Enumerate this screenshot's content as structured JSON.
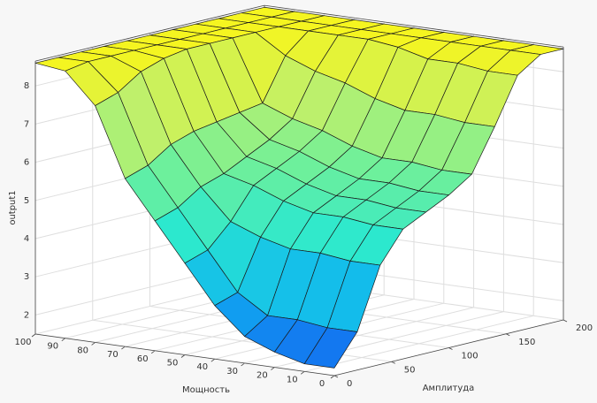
{
  "chart_data": {
    "type": "surface",
    "x_label": "Мощность",
    "y_label": "Амплитуда",
    "z_label": "output1",
    "x": [
      0,
      10,
      20,
      30,
      40,
      50,
      60,
      70,
      80,
      90,
      100
    ],
    "y": [
      0,
      20,
      40,
      60,
      80,
      100,
      120,
      140,
      160,
      180,
      200
    ],
    "z": [
      [
        1.7,
        2.5,
        4.1,
        4.9,
        5.2,
        5.5,
        5.9,
        7.0,
        8.2,
        8.6,
        8.6
      ],
      [
        1.7,
        2.5,
        4.1,
        4.9,
        5.2,
        5.5,
        5.9,
        7.0,
        8.2,
        8.6,
        8.6
      ],
      [
        1.9,
        2.6,
        4.2,
        5.0,
        5.3,
        5.6,
        6.0,
        7.1,
        8.3,
        8.6,
        8.6
      ],
      [
        2.2,
        2.6,
        4.2,
        5.0,
        5.3,
        5.6,
        6.0,
        7.1,
        8.3,
        8.6,
        8.6
      ],
      [
        2.9,
        3.1,
        4.4,
        5.2,
        5.5,
        5.8,
        6.2,
        7.3,
        8.5,
        8.6,
        8.6
      ],
      [
        3.9,
        4.1,
        4.7,
        5.5,
        5.8,
        6.1,
        6.5,
        7.6,
        8.6,
        8.6,
        8.6
      ],
      [
        4.9,
        5.1,
        5.5,
        5.7,
        6.0,
        6.3,
        6.7,
        7.8,
        8.6,
        8.6,
        8.6
      ],
      [
        5.9,
        6.1,
        6.5,
        6.7,
        6.8,
        6.9,
        7.0,
        8.1,
        8.6,
        8.6,
        8.6
      ],
      [
        7.7,
        7.9,
        8.3,
        8.5,
        8.6,
        8.6,
        8.6,
        8.6,
        8.6,
        8.6,
        8.6
      ],
      [
        8.5,
        8.6,
        8.6,
        8.6,
        8.6,
        8.6,
        8.6,
        8.6,
        8.6,
        8.6,
        8.6
      ],
      [
        8.6,
        8.6,
        8.6,
        8.6,
        8.6,
        8.6,
        8.6,
        8.6,
        8.6,
        8.6,
        8.6
      ]
    ],
    "xlim": [
      0,
      100
    ],
    "xticks": [
      0,
      10,
      20,
      30,
      40,
      50,
      60,
      70,
      80,
      90,
      100
    ],
    "ylim": [
      0,
      200
    ],
    "yticks": [
      0,
      50,
      100,
      150,
      200
    ],
    "zlim": [
      1.5,
      8.65
    ],
    "zticks": [
      2,
      3,
      4,
      5,
      6,
      7,
      8
    ],
    "grid": true,
    "colormap": [
      "#1560f0",
      "#0fb4f0",
      "#2ae8d0",
      "#6ff09a",
      "#c0f06a",
      "#f5f520"
    ]
  }
}
